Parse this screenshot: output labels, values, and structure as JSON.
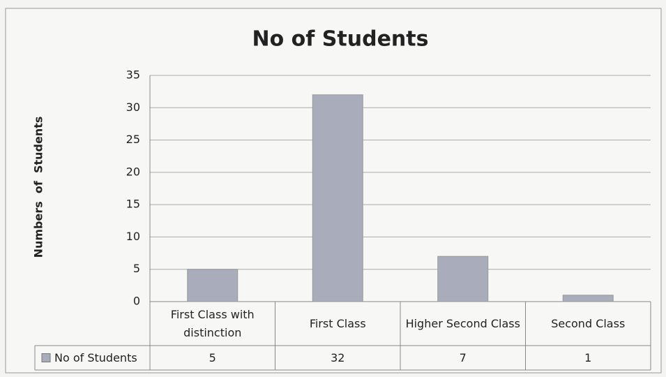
{
  "chart_data": {
    "type": "bar",
    "title": "No of Students",
    "y_label": "Numbers  of  Students",
    "categories": [
      "First Class with distinction",
      "First Class",
      "Higher Second Class",
      "Second Class"
    ],
    "series": [
      {
        "name": "No of Students",
        "color": "#a9adbb",
        "values": [
          5,
          32,
          7,
          1
        ]
      }
    ],
    "ylim": [
      0,
      35
    ],
    "yticks": [
      0,
      5,
      10,
      15,
      20,
      25,
      30,
      35
    ],
    "grid": true
  }
}
